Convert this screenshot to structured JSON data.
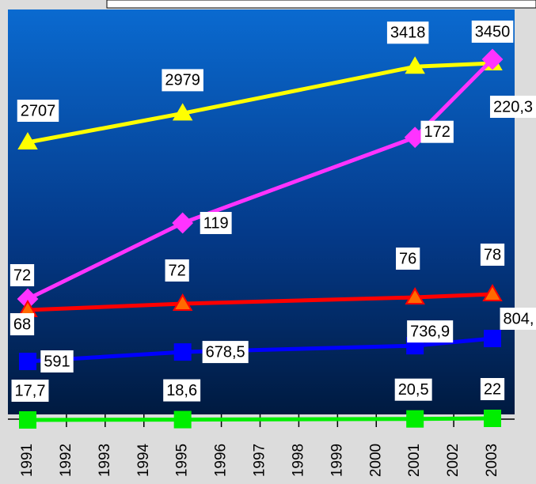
{
  "chart_data": {
    "type": "line",
    "x": [
      1991,
      1995,
      2001,
      2003
    ],
    "xlim": [
      1991,
      2003
    ],
    "xticks": [
      1991,
      1992,
      1993,
      1994,
      1995,
      1996,
      1997,
      1998,
      1999,
      2000,
      2001,
      2002,
      2003
    ],
    "series": [
      {
        "color": "#ffff00",
        "marker": "triangle",
        "values": [
          2707,
          2979,
          3418,
          3450
        ]
      },
      {
        "color": "#ff33ff",
        "marker": "diamond",
        "values": [
          72,
          119,
          172,
          220.3
        ],
        "value_labels": [
          "72",
          "119",
          "172",
          "220,3"
        ]
      },
      {
        "color": "#ff0000",
        "marker": "triangle",
        "values": [
          68,
          72,
          76,
          78
        ]
      },
      {
        "color": "#0000ff",
        "marker": "square",
        "values": [
          591,
          678.5,
          736.9,
          804
        ],
        "value_labels": [
          "591",
          "678,5",
          "736,9",
          "804,"
        ]
      },
      {
        "color": "#00ee00",
        "marker": "square",
        "values": [
          17.7,
          18.6,
          20.5,
          22
        ],
        "value_labels": [
          "17,7",
          "18,6",
          "20,5",
          "22"
        ]
      }
    ]
  }
}
